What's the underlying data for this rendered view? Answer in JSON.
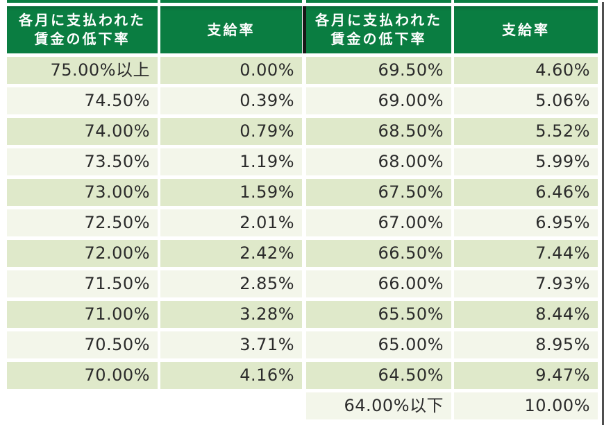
{
  "colors": {
    "header_green": "#0a7d41",
    "row_dark_green": "#dfe9ca",
    "row_light_green": "#f3f6ea",
    "mid_divider_black": "#171717",
    "text_dark": "#2b2b2b",
    "header_text_white": "#ffffff"
  },
  "table": {
    "header": {
      "rate_label_line1": "各月に支払われた",
      "rate_label_line2": "賃金の低下率",
      "payment_label": "支給率"
    },
    "left_rows": [
      {
        "rate": "75.00%以上",
        "payment": "0.00%"
      },
      {
        "rate": "74.50%",
        "payment": "0.39%"
      },
      {
        "rate": "74.00%",
        "payment": "0.79%"
      },
      {
        "rate": "73.50%",
        "payment": "1.19%"
      },
      {
        "rate": "73.00%",
        "payment": "1.59%"
      },
      {
        "rate": "72.50%",
        "payment": "2.01%"
      },
      {
        "rate": "72.00%",
        "payment": "2.42%"
      },
      {
        "rate": "71.50%",
        "payment": "2.85%"
      },
      {
        "rate": "71.00%",
        "payment": "3.28%"
      },
      {
        "rate": "70.50%",
        "payment": "3.71%"
      },
      {
        "rate": "70.00%",
        "payment": "4.16%"
      }
    ],
    "right_rows": [
      {
        "rate": "69.50%",
        "payment": "4.60%"
      },
      {
        "rate": "69.00%",
        "payment": "5.06%"
      },
      {
        "rate": "68.50%",
        "payment": "5.52%"
      },
      {
        "rate": "68.00%",
        "payment": "5.99%"
      },
      {
        "rate": "67.50%",
        "payment": "6.46%"
      },
      {
        "rate": "67.00%",
        "payment": "6.95%"
      },
      {
        "rate": "66.50%",
        "payment": "7.44%"
      },
      {
        "rate": "66.00%",
        "payment": "7.93%"
      },
      {
        "rate": "65.50%",
        "payment": "8.44%"
      },
      {
        "rate": "65.00%",
        "payment": "8.95%"
      },
      {
        "rate": "64.50%",
        "payment": "9.47%"
      },
      {
        "rate": "64.00%以下",
        "payment": "10.00%"
      }
    ]
  }
}
